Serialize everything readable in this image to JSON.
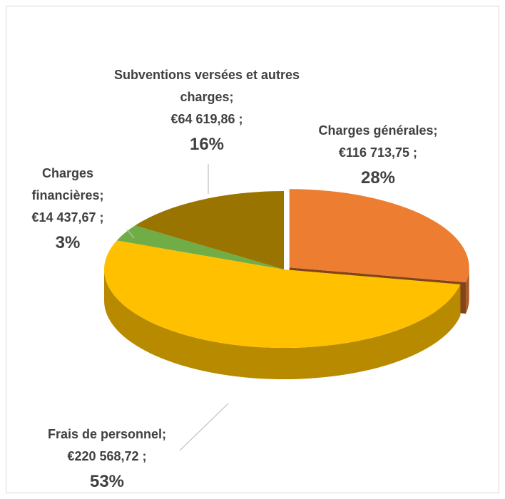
{
  "chart_data": {
    "type": "pie3d",
    "categories": [
      "Charges générales;",
      "Frais de personnel;",
      "Charges financières;",
      "Subventions versées et autres charges;"
    ],
    "values": [
      116713.75,
      220568.72,
      14437.67,
      64619.86
    ],
    "value_labels": [
      "€116 713,75 ;",
      "€220 568,72 ;",
      "€14 437,67 ;",
      "€64 619,86 ;"
    ],
    "percent_labels": [
      "28%",
      "53%",
      "3%",
      "16%"
    ],
    "colors": [
      "#ED7D31",
      "#FFC000",
      "#70AD47",
      "#9A7400"
    ],
    "exploded": [
      true,
      false,
      false,
      false
    ]
  }
}
